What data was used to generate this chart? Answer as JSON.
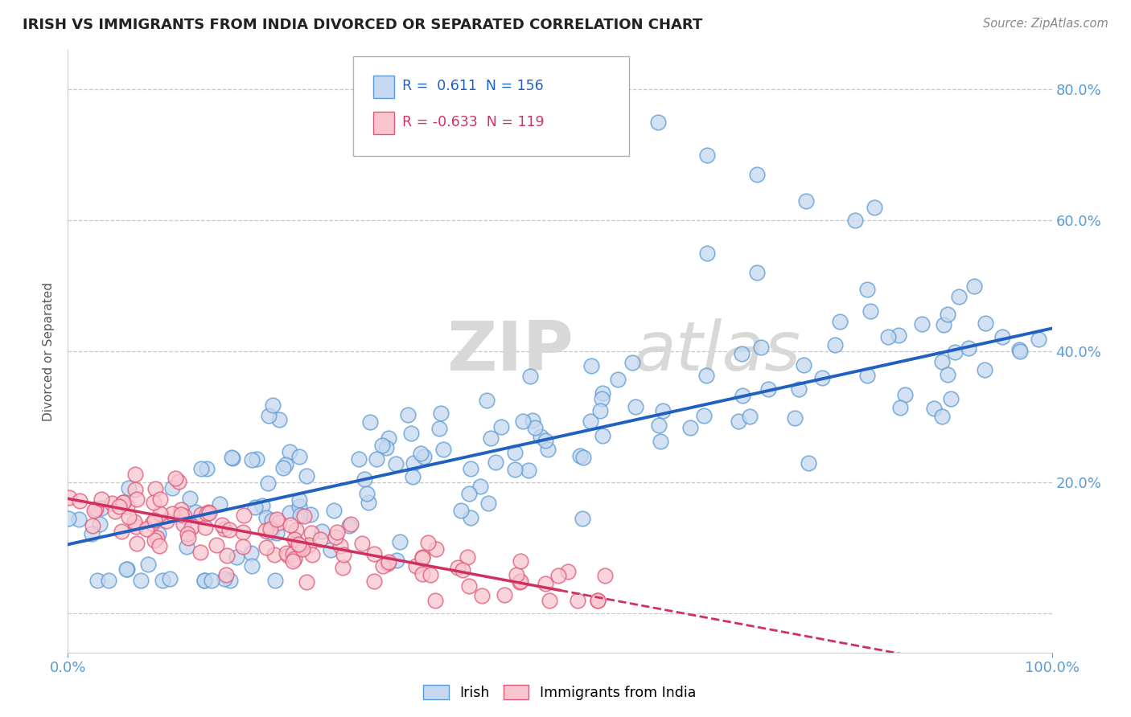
{
  "title": "IRISH VS IMMIGRANTS FROM INDIA DIVORCED OR SEPARATED CORRELATION CHART",
  "source": "Source: ZipAtlas.com",
  "ylabel": "Divorced or Separated",
  "xlim": [
    0.0,
    1.0
  ],
  "ylim": [
    -0.06,
    0.86
  ],
  "yticks": [
    0.0,
    0.2,
    0.4,
    0.6,
    0.8
  ],
  "watermark_zip": "ZIP",
  "watermark_atlas": "atlas",
  "legend_irish_R": "0.611",
  "legend_irish_N": "156",
  "legend_india_R": "-0.633",
  "legend_india_N": "119",
  "irish_fill": "#c5d8f0",
  "irish_edge": "#5b9bd5",
  "india_fill": "#f9c6d0",
  "india_edge": "#e05878",
  "irish_line_color": "#2060c0",
  "india_line_color": "#d03060",
  "background_color": "#ffffff",
  "grid_color": "#c8c8c8",
  "title_color": "#222222",
  "axis_label_color": "#5b9bd5"
}
